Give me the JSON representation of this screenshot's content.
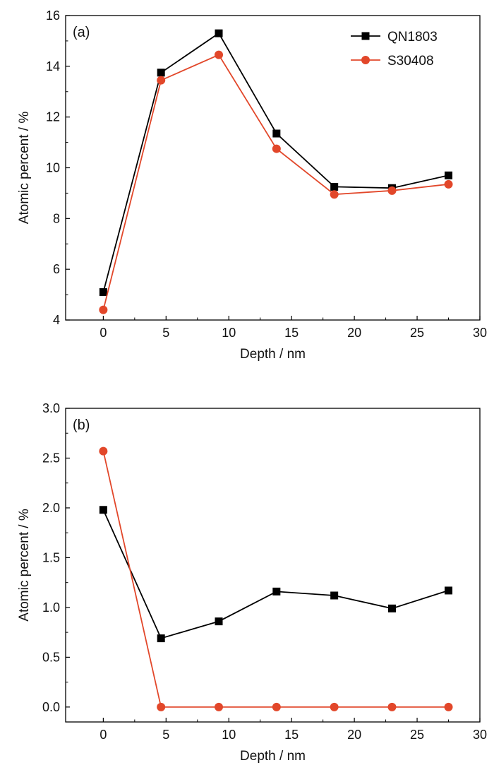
{
  "chart_data": [
    {
      "type": "line",
      "panel_label": "(a)",
      "xlabel": "Depth / nm",
      "ylabel": "Atomic percent / %",
      "xlim": [
        -3,
        30
      ],
      "ylim": [
        4,
        16
      ],
      "xticks": [
        "0",
        "5",
        "10",
        "15",
        "20",
        "25",
        "30"
      ],
      "yticks": [
        "4",
        "6",
        "8",
        "10",
        "12",
        "14",
        "16"
      ],
      "x": [
        0,
        4.6,
        9.2,
        13.8,
        18.4,
        23,
        27.5
      ],
      "series": [
        {
          "name": "QN1803",
          "color": "#000000",
          "marker": "square",
          "values": [
            5.1,
            13.75,
            15.3,
            11.35,
            9.25,
            9.2,
            9.7
          ]
        },
        {
          "name": "S30408",
          "color": "#e2472a",
          "marker": "circle",
          "values": [
            4.4,
            13.45,
            14.45,
            10.75,
            8.95,
            9.1,
            9.35
          ]
        }
      ],
      "legend_position": "top-right",
      "grid": false
    },
    {
      "type": "line",
      "panel_label": "(b)",
      "xlabel": "Depth / nm",
      "ylabel": "Atomic percent / %",
      "xlim": [
        -3,
        30
      ],
      "ylim": [
        -0.15,
        3.0
      ],
      "xticks": [
        "0",
        "5",
        "10",
        "15",
        "20",
        "25",
        "30"
      ],
      "yticks": [
        "0.0",
        "0.5",
        "1.0",
        "1.5",
        "2.0",
        "2.5",
        "3.0"
      ],
      "x": [
        0,
        4.6,
        9.2,
        13.8,
        18.4,
        23,
        27.5
      ],
      "series": [
        {
          "name": "QN1803",
          "color": "#000000",
          "marker": "square",
          "values": [
            1.98,
            0.69,
            0.86,
            1.16,
            1.12,
            0.99,
            1.17
          ]
        },
        {
          "name": "S30408",
          "color": "#e2472a",
          "marker": "circle",
          "values": [
            2.57,
            0.0,
            0.0,
            0.0,
            0.0,
            0.0,
            0.0
          ]
        }
      ],
      "grid": false
    }
  ]
}
